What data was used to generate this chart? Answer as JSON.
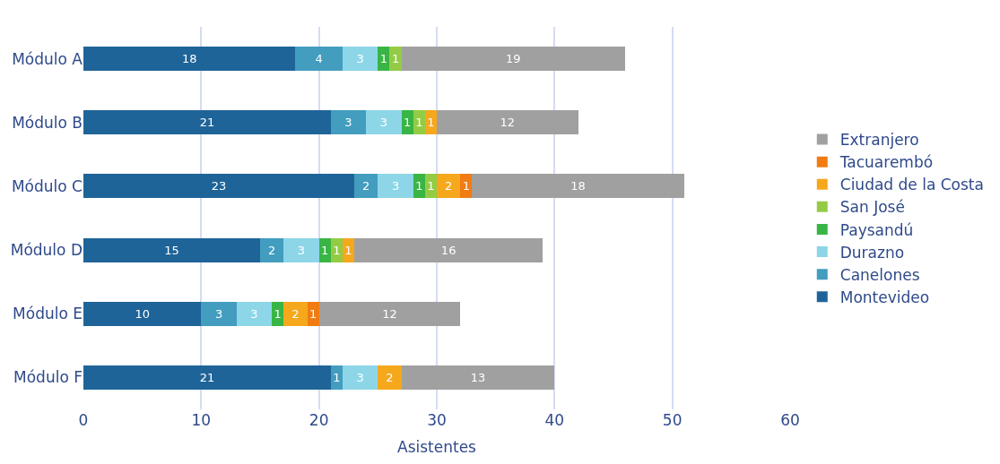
{
  "chart_data": {
    "type": "bar",
    "orientation": "horizontal",
    "stacked": true,
    "xlabel": "Asistentes",
    "categories": [
      "Módulo A",
      "Módulo B",
      "Módulo C",
      "Módulo D",
      "Módulo E",
      "Módulo F"
    ],
    "series": [
      {
        "name": "Montevideo",
        "color": "#1f6499",
        "values": [
          18,
          21,
          23,
          15,
          10,
          21
        ]
      },
      {
        "name": "Canelones",
        "color": "#429dbf",
        "values": [
          4,
          3,
          2,
          2,
          3,
          1
        ]
      },
      {
        "name": "Durazno",
        "color": "#8dd6e8",
        "values": [
          3,
          3,
          3,
          3,
          3,
          3
        ]
      },
      {
        "name": "Paysandú",
        "color": "#38b544",
        "values": [
          1,
          1,
          1,
          1,
          1,
          null
        ]
      },
      {
        "name": "San José",
        "color": "#93cc44",
        "values": [
          1,
          1,
          1,
          1,
          null,
          null
        ]
      },
      {
        "name": "Ciudad de la Costa",
        "color": "#f5a81c",
        "values": [
          null,
          1,
          2,
          1,
          2,
          2
        ]
      },
      {
        "name": "Tacuarembó",
        "color": "#f07c12",
        "values": [
          null,
          null,
          1,
          null,
          1,
          null
        ]
      },
      {
        "name": "Extranjero",
        "color": "#a0a0a0",
        "values": [
          19,
          12,
          18,
          16,
          12,
          13
        ]
      }
    ],
    "xlim": [
      0,
      60
    ],
    "xticks": [
      0,
      10,
      20,
      30,
      40,
      50,
      60
    ],
    "grid": "x",
    "legend": "right",
    "data_labels": true
  }
}
